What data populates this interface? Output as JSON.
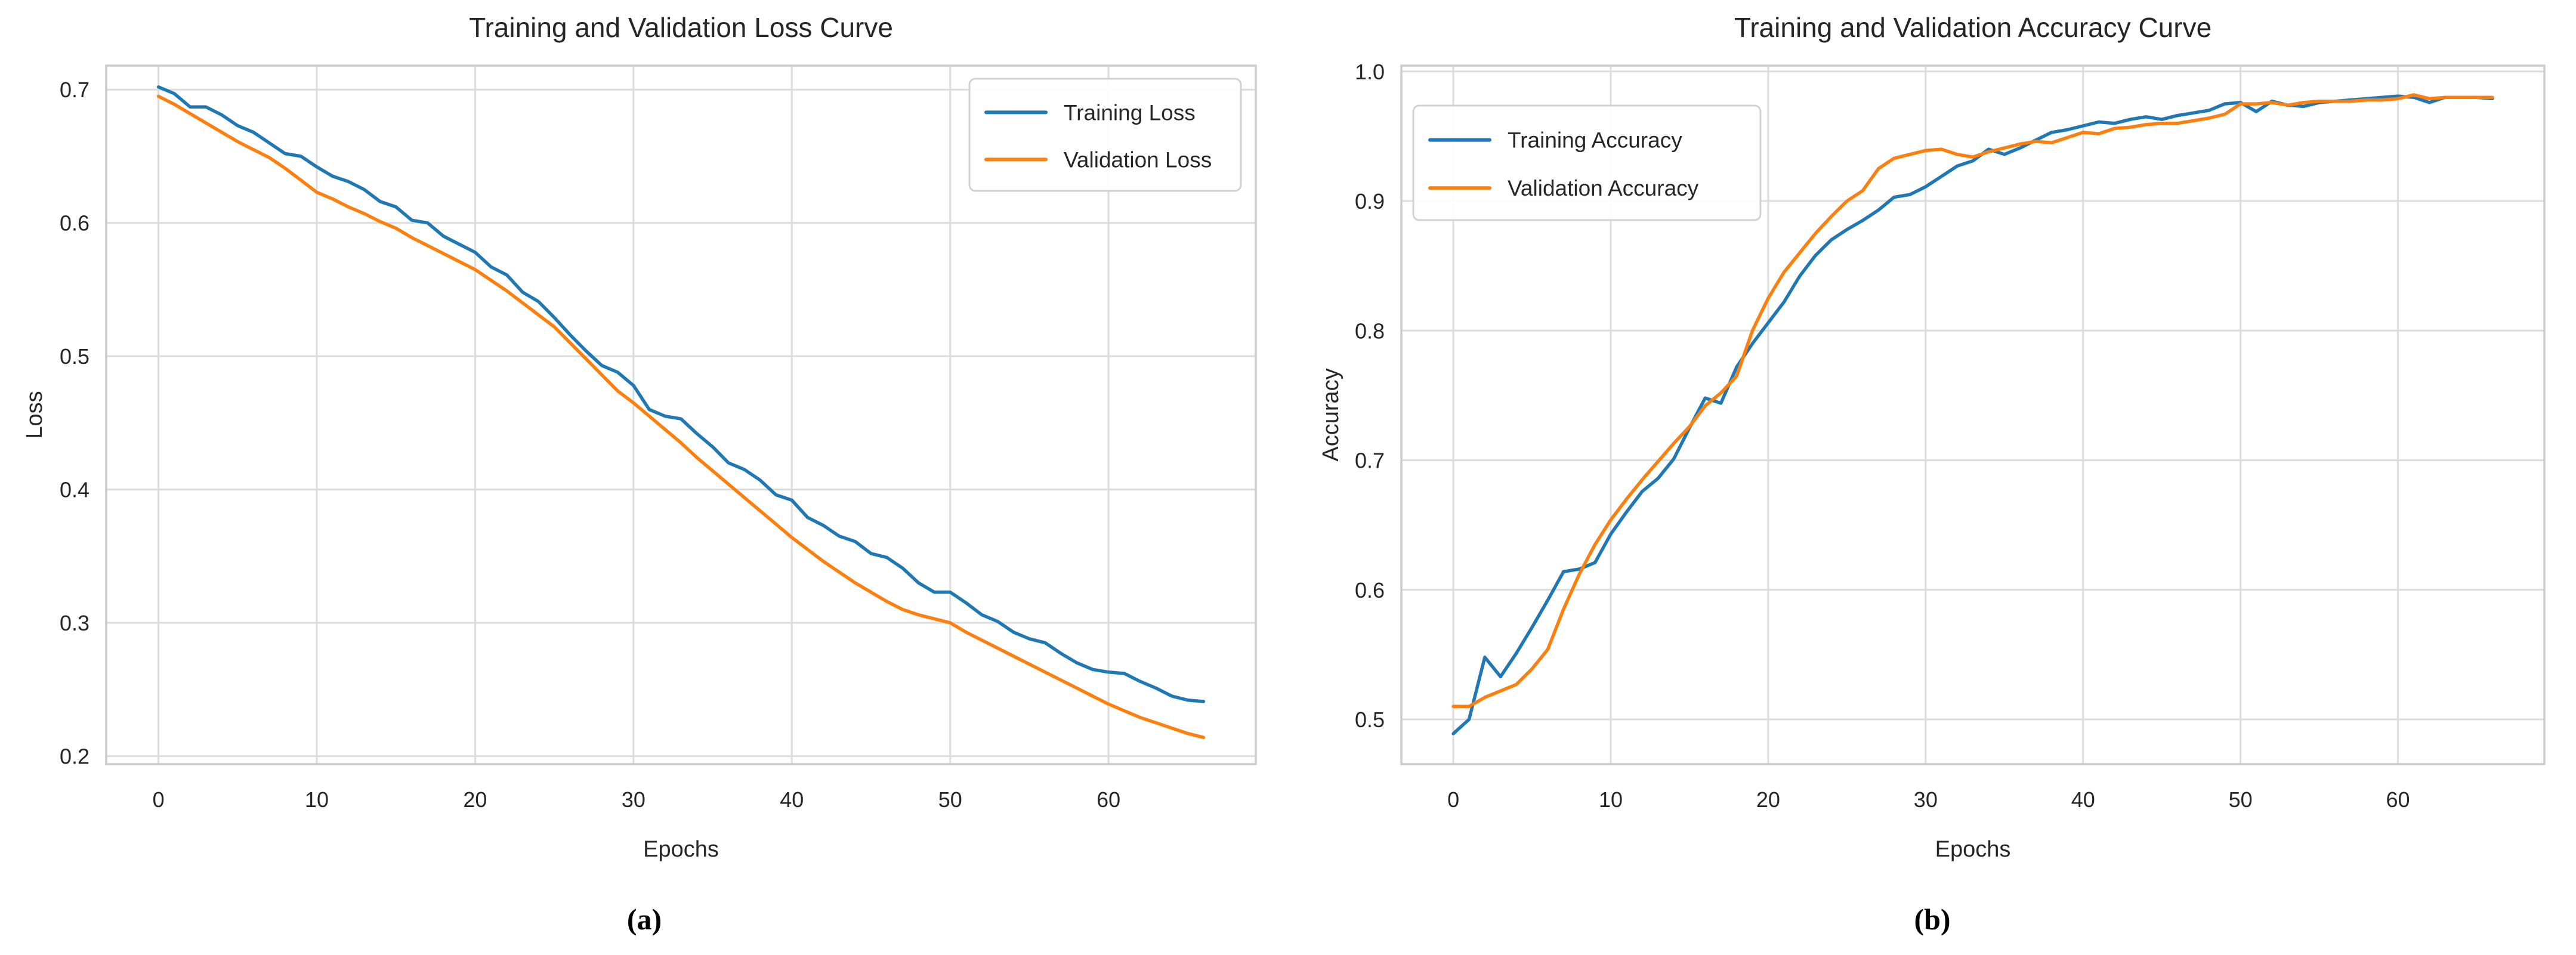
{
  "page": {
    "background": "#ffffff"
  },
  "colors": {
    "training": "#1f77b4",
    "validation": "#ff7f0e",
    "grid": "#dcdcdc",
    "spine": "#cccccc",
    "text": "#262626",
    "legend_border": "#d2d2d2",
    "legend_fill": "#ffffff"
  },
  "figure_labels": {
    "a": "(a)",
    "b": "(b)"
  },
  "chart_data": [
    {
      "id": "loss",
      "type": "line",
      "title": "Training and Validation Loss Curve",
      "xlabel": "Epochs",
      "ylabel": "Loss",
      "x_ticks": [
        "0",
        "10",
        "20",
        "30",
        "40",
        "50",
        "60"
      ],
      "x_tick_values": [
        0,
        10,
        20,
        30,
        40,
        50,
        60
      ],
      "y_ticks": [
        "0.2",
        "0.3",
        "0.4",
        "0.5",
        "0.6",
        "0.7"
      ],
      "y_tick_values": [
        0.2,
        0.3,
        0.4,
        0.5,
        0.6,
        0.7
      ],
      "xlim": [
        -3.3,
        69.3
      ],
      "ylim": [
        0.194,
        0.718
      ],
      "grid": true,
      "legend_position": "top-right",
      "x": [
        0,
        1,
        2,
        3,
        4,
        5,
        6,
        7,
        8,
        9,
        10,
        11,
        12,
        13,
        14,
        15,
        16,
        17,
        18,
        19,
        20,
        21,
        22,
        23,
        24,
        25,
        26,
        27,
        28,
        29,
        30,
        31,
        32,
        33,
        34,
        35,
        36,
        37,
        38,
        39,
        40,
        41,
        42,
        43,
        44,
        45,
        46,
        47,
        48,
        49,
        50,
        51,
        52,
        53,
        54,
        55,
        56,
        57,
        58,
        59,
        60,
        61,
        62,
        63,
        64,
        65,
        66
      ],
      "series": [
        {
          "name": "Training Loss",
          "color_key": "training",
          "values": [
            0.702,
            0.697,
            0.687,
            0.687,
            0.681,
            0.673,
            0.668,
            0.66,
            0.652,
            0.65,
            0.642,
            0.635,
            0.631,
            0.625,
            0.616,
            0.612,
            0.602,
            0.6,
            0.59,
            0.584,
            0.578,
            0.567,
            0.561,
            0.548,
            0.541,
            0.529,
            0.516,
            0.504,
            0.493,
            0.488,
            0.478,
            0.46,
            0.455,
            0.453,
            0.442,
            0.432,
            0.42,
            0.415,
            0.407,
            0.396,
            0.392,
            0.379,
            0.373,
            0.365,
            0.361,
            0.352,
            0.349,
            0.341,
            0.33,
            0.323,
            0.323,
            0.315,
            0.306,
            0.301,
            0.293,
            0.288,
            0.285,
            0.277,
            0.27,
            0.265,
            0.263,
            0.262,
            0.256,
            0.251,
            0.245,
            0.242,
            0.241
          ]
        },
        {
          "name": "Validation Loss",
          "color_key": "validation",
          "values": [
            0.695,
            0.689,
            0.682,
            0.675,
            0.668,
            0.661,
            0.655,
            0.649,
            0.641,
            0.632,
            0.623,
            0.618,
            0.612,
            0.607,
            0.601,
            0.596,
            0.589,
            0.583,
            0.577,
            0.571,
            0.565,
            0.557,
            0.549,
            0.54,
            0.531,
            0.522,
            0.51,
            0.498,
            0.486,
            0.474,
            0.465,
            0.455,
            0.445,
            0.435,
            0.424,
            0.414,
            0.404,
            0.394,
            0.384,
            0.374,
            0.364,
            0.355,
            0.346,
            0.338,
            0.33,
            0.323,
            0.316,
            0.31,
            0.306,
            0.303,
            0.3,
            0.293,
            0.287,
            0.281,
            0.275,
            0.269,
            0.263,
            0.257,
            0.251,
            0.245,
            0.239,
            0.234,
            0.229,
            0.225,
            0.221,
            0.217,
            0.214
          ]
        }
      ]
    },
    {
      "id": "accuracy",
      "type": "line",
      "title": "Training and Validation Accuracy Curve",
      "xlabel": "Epochs",
      "ylabel": "Accuracy",
      "x_ticks": [
        "0",
        "10",
        "20",
        "30",
        "40",
        "50",
        "60"
      ],
      "x_tick_values": [
        0,
        10,
        20,
        30,
        40,
        50,
        60
      ],
      "y_ticks": [
        "0.5",
        "0.6",
        "0.7",
        "0.8",
        "0.9",
        "1.0"
      ],
      "y_tick_values": [
        0.5,
        0.6,
        0.7,
        0.8,
        0.9,
        1.0
      ],
      "xlim": [
        -3.3,
        69.3
      ],
      "ylim": [
        0.4655,
        1.0045
      ],
      "grid": true,
      "legend_position": "top-left",
      "x": [
        0,
        1,
        2,
        3,
        4,
        5,
        6,
        7,
        8,
        9,
        10,
        11,
        12,
        13,
        14,
        15,
        16,
        17,
        18,
        19,
        20,
        21,
        22,
        23,
        24,
        25,
        26,
        27,
        28,
        29,
        30,
        31,
        32,
        33,
        34,
        35,
        36,
        37,
        38,
        39,
        40,
        41,
        42,
        43,
        44,
        45,
        46,
        47,
        48,
        49,
        50,
        51,
        52,
        53,
        54,
        55,
        56,
        57,
        58,
        59,
        60,
        61,
        62,
        63,
        64,
        65,
        66
      ],
      "series": [
        {
          "name": "Training Accuracy",
          "color_key": "training",
          "values": [
            0.489,
            0.5,
            0.548,
            0.533,
            0.551,
            0.571,
            0.592,
            0.614,
            0.616,
            0.621,
            0.643,
            0.66,
            0.676,
            0.686,
            0.701,
            0.725,
            0.748,
            0.744,
            0.772,
            0.79,
            0.806,
            0.822,
            0.842,
            0.858,
            0.87,
            0.878,
            0.885,
            0.893,
            0.903,
            0.905,
            0.911,
            0.919,
            0.927,
            0.931,
            0.94,
            0.936,
            0.941,
            0.947,
            0.953,
            0.955,
            0.958,
            0.961,
            0.96,
            0.963,
            0.965,
            0.963,
            0.966,
            0.968,
            0.97,
            0.975,
            0.976,
            0.969,
            0.977,
            0.974,
            0.973,
            0.976,
            0.977,
            0.978,
            0.979,
            0.98,
            0.981,
            0.98,
            0.976,
            0.98,
            0.98,
            0.98,
            0.979
          ]
        },
        {
          "name": "Validation Accuracy",
          "color_key": "validation",
          "values": [
            0.51,
            0.51,
            0.517,
            0.522,
            0.527,
            0.539,
            0.554,
            0.585,
            0.612,
            0.635,
            0.654,
            0.67,
            0.685,
            0.699,
            0.713,
            0.726,
            0.742,
            0.752,
            0.765,
            0.8,
            0.825,
            0.845,
            0.86,
            0.875,
            0.888,
            0.9,
            0.908,
            0.925,
            0.933,
            0.936,
            0.939,
            0.94,
            0.936,
            0.934,
            0.938,
            0.941,
            0.944,
            0.946,
            0.945,
            0.949,
            0.953,
            0.952,
            0.956,
            0.957,
            0.959,
            0.96,
            0.96,
            0.962,
            0.964,
            0.967,
            0.975,
            0.975,
            0.976,
            0.974,
            0.976,
            0.977,
            0.977,
            0.977,
            0.978,
            0.978,
            0.979,
            0.982,
            0.979,
            0.98,
            0.98,
            0.98,
            0.98
          ]
        }
      ]
    }
  ]
}
